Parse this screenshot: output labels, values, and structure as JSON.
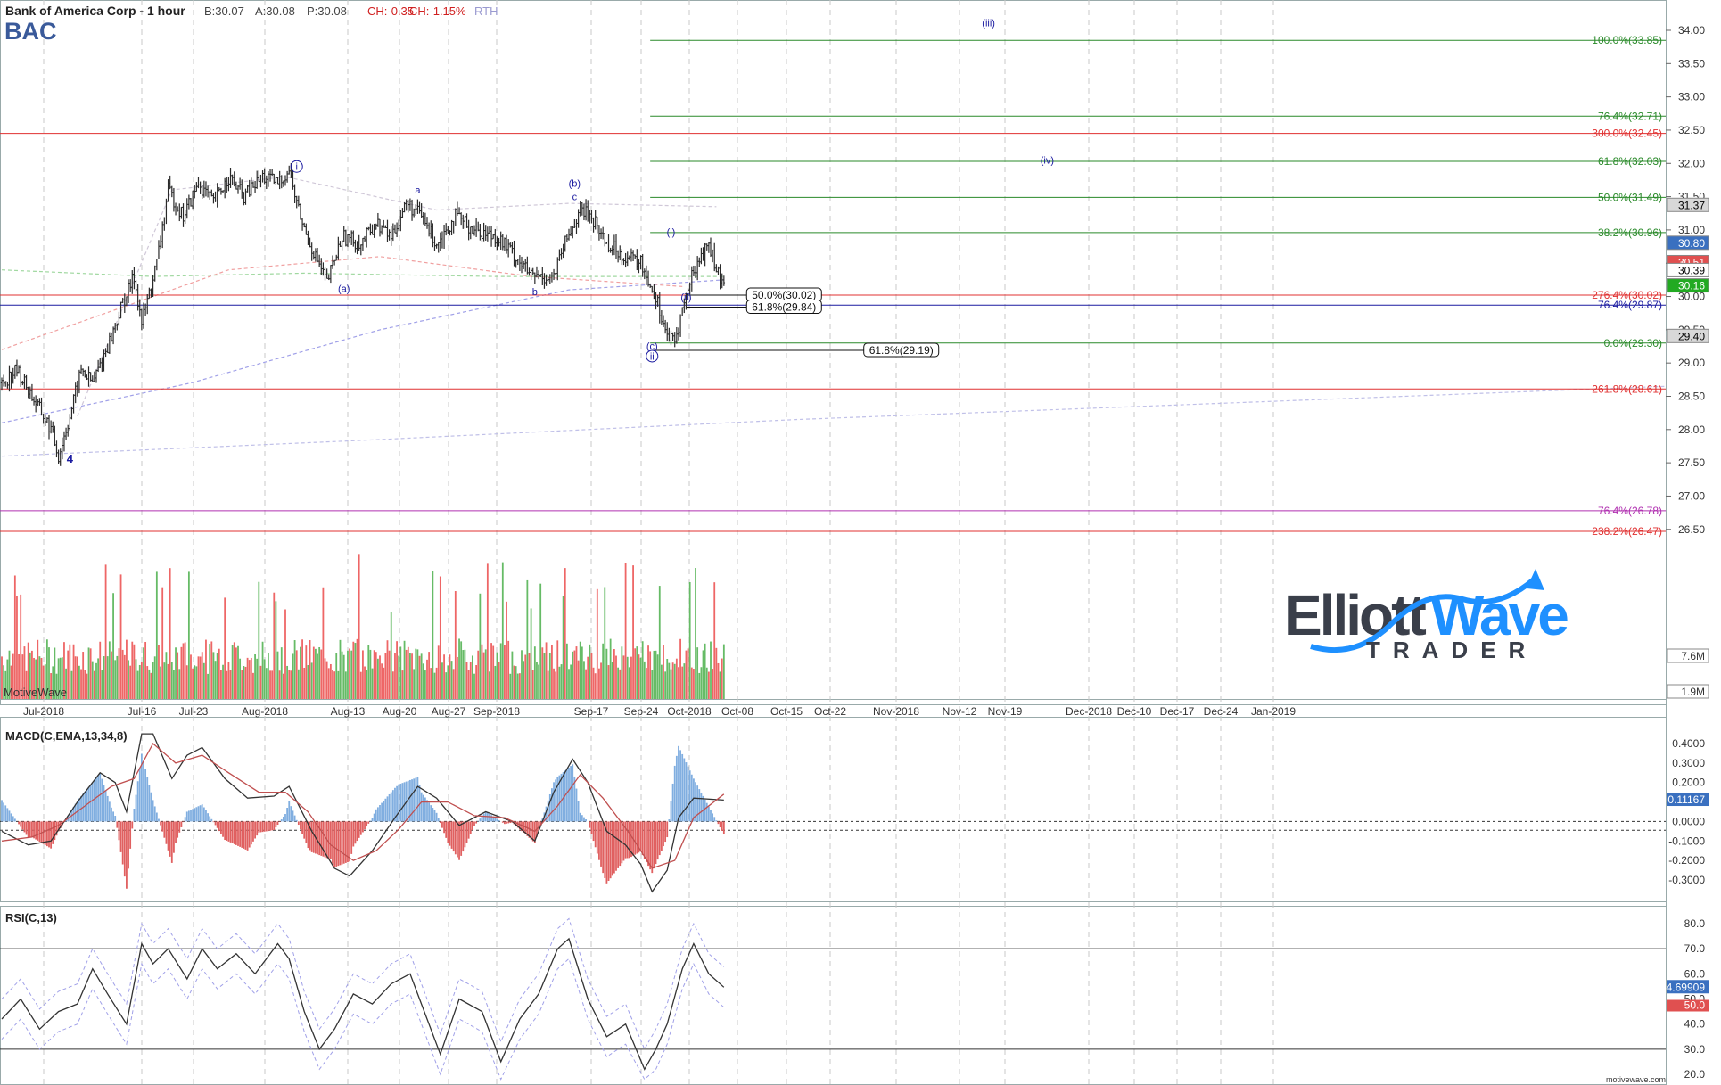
{
  "header": {
    "title": "Bank of America Corp - 1 hour",
    "quote_b": "B:30.07",
    "quote_a": "A:30.08",
    "quote_p": "P:30.08",
    "change": "CH:-0.35",
    "change_pct": "CH:-1.15%",
    "session": "RTH",
    "symbol": "BAC"
  },
  "branding": {
    "watermark": "MotiveWave",
    "site": "motivewave.com",
    "logo_word_1": "Elliott",
    "logo_word_2": "Wave",
    "logo_sub": "TRADER"
  },
  "colors": {
    "bull": "#2a2a2a",
    "fib_green": "#2a8a2a",
    "fib_red": "#e03030",
    "blue": "#1a1aa0",
    "magenta": "#b030b0",
    "vol_green": "#66bb66",
    "vol_red": "#ee6666",
    "logo_blue": "#1e90ff",
    "logo_dark": "#3a3f4a"
  },
  "chart_data": [
    {
      "type": "candlestick",
      "title": "Bank of America Corp - 1 hour",
      "x_labels": [
        "Jul-2018",
        "Jul-16",
        "Jul-23",
        "Aug-2018",
        "Aug-13",
        "Aug-20",
        "Aug-27",
        "Sep-2018",
        "Sep-17",
        "Sep-24",
        "Oct-2018",
        "Oct-08",
        "Oct-15",
        "Oct-22",
        "Nov-2018",
        "Nov-12",
        "Nov-19",
        "Dec-2018",
        "Dec-10",
        "Dec-17",
        "Dec-24",
        "Jan-2019"
      ],
      "y_ticks": [
        "34.00",
        "33.50",
        "33.00",
        "32.50",
        "32.00",
        "31.50",
        "31.00",
        "30.50",
        "30.00",
        "29.50",
        "29.00",
        "28.50",
        "28.00",
        "27.50",
        "27.00",
        "26.50"
      ],
      "ylim": [
        25.4,
        34.25
      ],
      "price_path": [
        [
          0,
          28.7
        ],
        [
          8,
          28.9
        ],
        [
          18,
          28.4
        ],
        [
          26,
          28.0
        ],
        [
          30,
          27.6
        ],
        [
          36,
          28.2
        ],
        [
          42,
          28.9
        ],
        [
          48,
          28.7
        ],
        [
          58,
          29.4
        ],
        [
          64,
          29.9
        ],
        [
          70,
          30.3
        ],
        [
          74,
          29.6
        ],
        [
          82,
          30.5
        ],
        [
          88,
          31.6
        ],
        [
          96,
          31.2
        ],
        [
          104,
          31.7
        ],
        [
          112,
          31.4
        ],
        [
          120,
          31.8
        ],
        [
          128,
          31.5
        ],
        [
          138,
          31.8
        ],
        [
          146,
          31.7
        ],
        [
          152,
          31.9
        ],
        [
          156,
          31.4
        ],
        [
          160,
          31.0
        ],
        [
          166,
          30.6
        ],
        [
          172,
          30.2
        ],
        [
          180,
          30.9
        ],
        [
          190,
          30.8
        ],
        [
          198,
          31.1
        ],
        [
          206,
          30.9
        ],
        [
          214,
          31.4
        ],
        [
          222,
          31.2
        ],
        [
          230,
          30.8
        ],
        [
          240,
          31.2
        ],
        [
          250,
          31.0
        ],
        [
          262,
          30.9
        ],
        [
          272,
          30.6
        ],
        [
          280,
          30.3
        ],
        [
          292,
          30.3
        ],
        [
          298,
          30.8
        ],
        [
          306,
          31.3
        ],
        [
          312,
          31.2
        ],
        [
          320,
          30.8
        ],
        [
          330,
          30.6
        ],
        [
          338,
          30.5
        ],
        [
          346,
          30.0
        ],
        [
          352,
          29.4
        ],
        [
          356,
          29.3
        ],
        [
          360,
          29.8
        ],
        [
          366,
          30.4
        ],
        [
          374,
          30.8
        ],
        [
          378,
          30.4
        ],
        [
          382,
          30.1
        ]
      ],
      "annotations": [
        {
          "label": "i",
          "x": 156,
          "y": 31.9,
          "circled": true
        },
        {
          "label": "(a)",
          "x": 181,
          "y": 30.07,
          "circled": false
        },
        {
          "label": "a",
          "x": 220,
          "y": 31.55,
          "circled": false
        },
        {
          "label": "b",
          "x": 282,
          "y": 30.02,
          "circled": false
        },
        {
          "label": "(b)",
          "x": 303,
          "y": 31.65,
          "circled": false
        },
        {
          "label": "c",
          "x": 303,
          "y": 31.45,
          "circled": false
        },
        {
          "label": "(c)",
          "x": 344,
          "y": 29.2,
          "circled": false
        },
        {
          "label": "ii",
          "x": 344,
          "y": 29.05,
          "circled": true
        },
        {
          "label": "(i)",
          "x": 354,
          "y": 30.92,
          "circled": false
        },
        {
          "label": "(ii)",
          "x": 362,
          "y": 29.94,
          "circled": false
        },
        {
          "label": "(iii)",
          "x": 522,
          "y": 34.06,
          "circled": false
        },
        {
          "label": "(iv)",
          "x": 553,
          "y": 32.0,
          "circled": false
        },
        {
          "label": "4",
          "x": 36,
          "y": 27.5,
          "circled": false
        }
      ],
      "fib_levels": [
        {
          "label": "100.0%(33.85)",
          "value": 33.85,
          "color": "green",
          "x_start": 343
        },
        {
          "label": "76.4%(32.71)",
          "value": 32.71,
          "color": "green",
          "x_start": 343
        },
        {
          "label": "300.0%(32.45)",
          "value": 32.45,
          "color": "red",
          "x_start": 0
        },
        {
          "label": "61.8%(32.03)",
          "value": 32.03,
          "color": "green",
          "x_start": 343
        },
        {
          "label": "50.0%(31.49)",
          "value": 31.49,
          "color": "green",
          "x_start": 343
        },
        {
          "label": "38.2%(30.96)",
          "value": 30.96,
          "color": "green",
          "x_start": 343
        },
        {
          "label": "276.4%(30.02)",
          "value": 30.02,
          "color": "red",
          "x_start": 0
        },
        {
          "label": "76.4%(29.87)",
          "value": 29.87,
          "color": "blue",
          "x_start": 0
        },
        {
          "label": "0.0%(29.30)",
          "value": 29.3,
          "color": "green",
          "x_start": 343
        },
        {
          "label": "261.8%(28.61)",
          "value": 28.61,
          "color": "red",
          "x_start": 0
        },
        {
          "label": "76.4%(26.78)",
          "value": 26.78,
          "color": "magenta",
          "x_start": 0
        },
        {
          "label": "238.2%(26.47)",
          "value": 26.47,
          "color": "red",
          "x_start": 0
        }
      ],
      "boxed_levels": [
        {
          "label": "50.0%(30.02)",
          "value": 30.02,
          "x_start": 362,
          "box_x": 394
        },
        {
          "label": "61.8%(29.84)",
          "value": 29.84,
          "x_start": 362,
          "box_x": 394
        },
        {
          "label": "61.8%(29.19)",
          "value": 29.19,
          "x_start": 344,
          "box_x": 456
        }
      ],
      "price_badges": [
        {
          "label": "31.37",
          "value": 31.37,
          "bg": "#d8d8d8",
          "fg": "#000000"
        },
        {
          "label": "30.80",
          "value": 30.8,
          "bg": "#3a70c0",
          "fg": "#ffffff"
        },
        {
          "label": "30.51",
          "value": 30.51,
          "bg": "#e05050",
          "fg": "#ffffff"
        },
        {
          "label": "30.39",
          "value": 30.39,
          "bg": "#ffffff",
          "fg": "#000000"
        },
        {
          "label": "30.16",
          "value": 30.16,
          "bg": "#22aa22",
          "fg": "#ffffff"
        },
        {
          "label": "29.40",
          "value": 29.4,
          "bg": "#d8d8d8",
          "fg": "#000000"
        }
      ],
      "volume_labels": [
        "7.6M",
        "1.9M"
      ]
    },
    {
      "type": "line",
      "title": "MACD(C,EMA,13,34,8)",
      "y_ticks": [
        "0.4000",
        "0.3000",
        "0.2000",
        "0.1000",
        "0.0000",
        "-0.1000",
        "-0.2000",
        "-0.3000"
      ],
      "ylim": [
        -0.43,
        0.5
      ],
      "last_value": "0.11167",
      "macd_path": [
        [
          0,
          -0.05
        ],
        [
          14,
          -0.12
        ],
        [
          26,
          -0.1
        ],
        [
          40,
          0.1
        ],
        [
          52,
          0.25
        ],
        [
          60,
          0.2
        ],
        [
          66,
          0.05
        ],
        [
          74,
          0.45
        ],
        [
          80,
          0.45
        ],
        [
          90,
          0.22
        ],
        [
          98,
          0.34
        ],
        [
          106,
          0.38
        ],
        [
          118,
          0.22
        ],
        [
          130,
          0.12
        ],
        [
          144,
          0.13
        ],
        [
          152,
          0.18
        ],
        [
          164,
          -0.05
        ],
        [
          176,
          -0.24
        ],
        [
          184,
          -0.28
        ],
        [
          196,
          -0.15
        ],
        [
          208,
          0.02
        ],
        [
          220,
          0.18
        ],
        [
          230,
          0.12
        ],
        [
          242,
          -0.02
        ],
        [
          256,
          0.05
        ],
        [
          270,
          0.0
        ],
        [
          282,
          -0.1
        ],
        [
          292,
          0.15
        ],
        [
          302,
          0.32
        ],
        [
          310,
          0.2
        ],
        [
          320,
          -0.05
        ],
        [
          330,
          -0.12
        ],
        [
          338,
          -0.22
        ],
        [
          344,
          -0.36
        ],
        [
          352,
          -0.25
        ],
        [
          358,
          0.02
        ],
        [
          366,
          0.12
        ],
        [
          382,
          0.11
        ]
      ],
      "signal_path": [
        [
          0,
          -0.1
        ],
        [
          16,
          -0.08
        ],
        [
          30,
          -0.02
        ],
        [
          44,
          0.08
        ],
        [
          58,
          0.18
        ],
        [
          70,
          0.22
        ],
        [
          80,
          0.4
        ],
        [
          92,
          0.3
        ],
        [
          106,
          0.34
        ],
        [
          120,
          0.25
        ],
        [
          136,
          0.15
        ],
        [
          150,
          0.15
        ],
        [
          162,
          0.05
        ],
        [
          174,
          -0.12
        ],
        [
          186,
          -0.2
        ],
        [
          198,
          -0.15
        ],
        [
          210,
          -0.04
        ],
        [
          222,
          0.1
        ],
        [
          236,
          0.1
        ],
        [
          250,
          0.03
        ],
        [
          266,
          0.02
        ],
        [
          282,
          -0.05
        ],
        [
          294,
          0.08
        ],
        [
          306,
          0.24
        ],
        [
          318,
          0.12
        ],
        [
          332,
          -0.06
        ],
        [
          344,
          -0.24
        ],
        [
          356,
          -0.2
        ],
        [
          366,
          0.02
        ],
        [
          382,
          0.14
        ]
      ]
    },
    {
      "type": "line",
      "title": "RSI(C,13)",
      "y_ticks": [
        "80.0",
        "70.0",
        "60.0",
        "50.0",
        "40.0",
        "30.0",
        "20.0"
      ],
      "ylim": [
        16,
        84
      ],
      "last_value": "54.69909",
      "level_label": "50.0",
      "rsi_path": [
        [
          0,
          42
        ],
        [
          10,
          50
        ],
        [
          20,
          38
        ],
        [
          30,
          45
        ],
        [
          40,
          48
        ],
        [
          48,
          62
        ],
        [
          56,
          52
        ],
        [
          66,
          40
        ],
        [
          74,
          72
        ],
        [
          80,
          64
        ],
        [
          88,
          70
        ],
        [
          98,
          58
        ],
        [
          106,
          70
        ],
        [
          114,
          62
        ],
        [
          124,
          68
        ],
        [
          134,
          60
        ],
        [
          146,
          72
        ],
        [
          152,
          66
        ],
        [
          160,
          45
        ],
        [
          168,
          30
        ],
        [
          176,
          38
        ],
        [
          186,
          52
        ],
        [
          196,
          48
        ],
        [
          206,
          56
        ],
        [
          216,
          60
        ],
        [
          222,
          48
        ],
        [
          232,
          28
        ],
        [
          242,
          50
        ],
        [
          254,
          45
        ],
        [
          264,
          25
        ],
        [
          274,
          42
        ],
        [
          284,
          52
        ],
        [
          294,
          70
        ],
        [
          300,
          74
        ],
        [
          310,
          50
        ],
        [
          320,
          35
        ],
        [
          330,
          40
        ],
        [
          340,
          22
        ],
        [
          346,
          30
        ],
        [
          352,
          40
        ],
        [
          360,
          62
        ],
        [
          366,
          72
        ],
        [
          374,
          60
        ],
        [
          382,
          54.7
        ]
      ]
    }
  ]
}
